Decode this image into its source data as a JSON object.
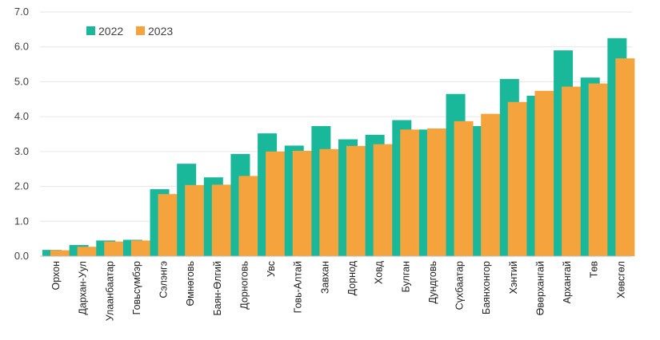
{
  "chart_data": {
    "type": "bar",
    "categories": [
      "Орхон",
      "Дархан-Уул",
      "Улаанбаатар",
      "Говьсүмбэр",
      "Сэлэнгэ",
      "Өмнөговь",
      "Баян-Өлгий",
      "Дорноговь",
      "Увс",
      "Говь-Алтай",
      "Завхан",
      "Дорнод",
      "Ховд",
      "Булган",
      "Дундговь",
      "Сүхбаатар",
      "Баянхонгор",
      "Хэнтий",
      "Өвөрхангай",
      "Архангай",
      "Төв",
      "Хөвсгөл"
    ],
    "series": [
      {
        "name": "2022",
        "color": "#1ab89a",
        "values": [
          0.18,
          0.32,
          0.45,
          0.47,
          1.92,
          2.65,
          2.26,
          2.93,
          3.52,
          3.17,
          3.73,
          3.35,
          3.48,
          3.9,
          3.63,
          4.65,
          3.73,
          5.08,
          4.6,
          5.9,
          5.12,
          6.25
        ]
      },
      {
        "name": "2023",
        "color": "#f5a33c",
        "values": [
          0.17,
          0.27,
          0.42,
          0.45,
          1.78,
          2.04,
          2.05,
          2.3,
          3.0,
          3.02,
          3.07,
          3.16,
          3.21,
          3.63,
          3.66,
          3.87,
          4.08,
          4.42,
          4.74,
          4.86,
          4.95,
          5.67
        ]
      }
    ],
    "ylim": [
      0,
      7
    ],
    "yticks": [
      "0.0",
      "1.0",
      "2.0",
      "3.0",
      "4.0",
      "5.0",
      "6.0",
      "7.0"
    ],
    "grid": true,
    "legend": "top-left",
    "title": "",
    "xlabel": "",
    "ylabel": ""
  }
}
